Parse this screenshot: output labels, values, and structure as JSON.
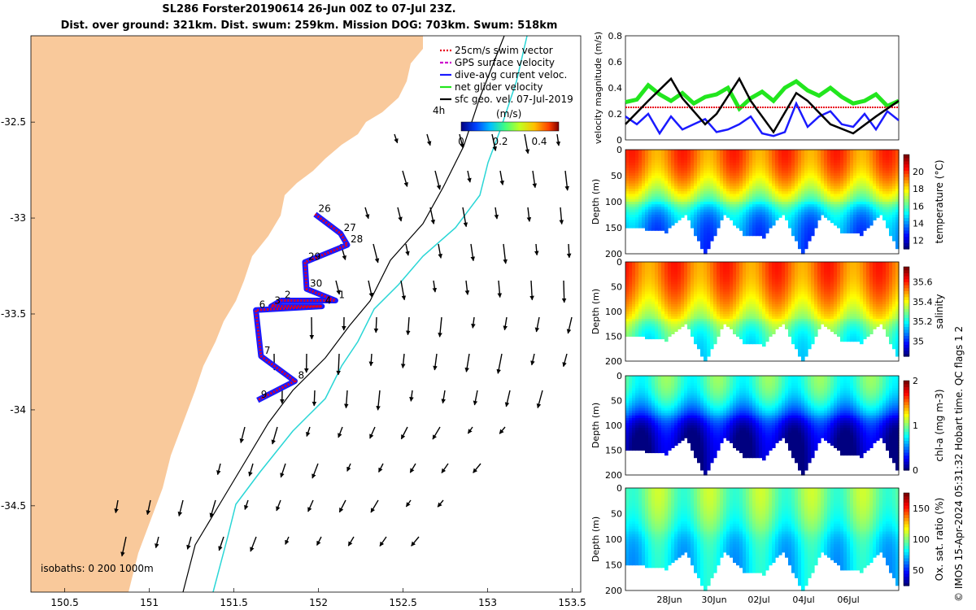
{
  "header": {
    "title_line1": "SL286 Forster20190614 26-Jun 00Z to 07-Jul 23Z.",
    "title_line2": "Dist. over ground: 321km. Dist. swum: 259km. Mission DOG: 703km. Swum: 518km"
  },
  "credit": "© IMOS 15-Apr-2024 05:31:32 Hobart time. QC flags 1  2",
  "colors": {
    "land": "#f9c99b",
    "trajectory": "#e8001c",
    "dive_avg": "#1a1aff",
    "net_velocity": "#22e61e",
    "geo_vel": "#000000",
    "isobath_200": "#000000",
    "isobath_1000": "#2ad6d6"
  },
  "map": {
    "x_ticks": [
      "150.5",
      "151",
      "151.5",
      "152",
      "152.5",
      "153",
      "153.5"
    ],
    "y_ticks": [
      "-32.5",
      "-33",
      "-33.5",
      "-34",
      "-34.5"
    ],
    "xlim": [
      150.3,
      153.55
    ],
    "ylim": [
      -34.95,
      -32.05
    ],
    "isobath_label": "isobaths: 0   200   1000m",
    "time_label": "4h",
    "legend": [
      {
        "label": "25cm/s swim vector",
        "color": "#e8001c",
        "style": "dotted"
      },
      {
        "label": "GPS surface velocity",
        "color": "#cc00cc",
        "style": "dashed"
      },
      {
        "label": "dive-avg current veloc.",
        "color": "#1a1aff",
        "style": "solid"
      },
      {
        "label": "net glider velocity",
        "color": "#22e61e",
        "style": "solid"
      },
      {
        "label": "sfc geo. vel. 07-Jul-2019",
        "color": "#000000",
        "style": "solid"
      }
    ],
    "colorbar": {
      "label": "(m/s)",
      "ticks": [
        "0",
        "0.2",
        "0.4"
      ],
      "range": [
        0,
        0.5
      ]
    },
    "day_labels": [
      {
        "text": "26",
        "lon": 151.98,
        "lat": -32.98
      },
      {
        "text": "27",
        "lon": 152.13,
        "lat": -33.08
      },
      {
        "text": "28",
        "lon": 152.17,
        "lat": -33.14
      },
      {
        "text": "29",
        "lon": 151.92,
        "lat": -33.23
      },
      {
        "text": "30",
        "lon": 151.93,
        "lat": -33.37
      },
      {
        "text": "1",
        "lon": 152.1,
        "lat": -33.43
      },
      {
        "text": "2",
        "lon": 151.78,
        "lat": -33.43
      },
      {
        "text": "3",
        "lon": 151.72,
        "lat": -33.46
      },
      {
        "text": "4",
        "lon": 152.02,
        "lat": -33.46
      },
      {
        "text": "6",
        "lon": 151.63,
        "lat": -33.48
      },
      {
        "text": "7",
        "lon": 151.66,
        "lat": -33.72
      },
      {
        "text": "8",
        "lon": 151.86,
        "lat": -33.85
      },
      {
        "text": "9",
        "lon": 151.64,
        "lat": -33.95
      }
    ]
  },
  "chart_data": [
    {
      "type": "line",
      "ylabel": "velocity magnitude (m/s)",
      "ylim": [
        0,
        0.8
      ],
      "y_ticks": [
        "0",
        "0.2",
        "0.4",
        "0.6",
        "0.8"
      ],
      "xlim": [
        "26Jun",
        "08Jul"
      ],
      "series": [
        {
          "name": "net glider velocity",
          "color": "#22e61e",
          "x": [
            0,
            0.5,
            1,
            1.5,
            2,
            2.5,
            3,
            3.5,
            4,
            4.5,
            5,
            5.5,
            6,
            6.5,
            7,
            7.5,
            8,
            8.5,
            9,
            9.5,
            10,
            10.5,
            11,
            11.5,
            12
          ],
          "values": [
            0.29,
            0.31,
            0.42,
            0.35,
            0.3,
            0.36,
            0.28,
            0.33,
            0.35,
            0.4,
            0.24,
            0.32,
            0.37,
            0.3,
            0.4,
            0.45,
            0.38,
            0.34,
            0.4,
            0.33,
            0.28,
            0.3,
            0.35,
            0.26,
            0.3
          ]
        },
        {
          "name": "25cm/s swim vector",
          "color": "#e8001c",
          "x": [
            0,
            12
          ],
          "values": [
            0.25,
            0.25
          ]
        },
        {
          "name": "dive-avg current veloc.",
          "color": "#1a1aff",
          "x": [
            0,
            0.5,
            1,
            1.5,
            2,
            2.5,
            3,
            3.5,
            4,
            4.5,
            5,
            5.5,
            6,
            6.5,
            7,
            7.5,
            8,
            8.5,
            9,
            9.5,
            10,
            10.5,
            11,
            11.5,
            12
          ],
          "values": [
            0.18,
            0.12,
            0.2,
            0.05,
            0.18,
            0.08,
            0.12,
            0.16,
            0.06,
            0.08,
            0.12,
            0.18,
            0.05,
            0.03,
            0.06,
            0.28,
            0.1,
            0.18,
            0.22,
            0.12,
            0.1,
            0.2,
            0.08,
            0.22,
            0.15
          ]
        },
        {
          "name": "sfc geo. vel.",
          "color": "#000000",
          "x": [
            0,
            1,
            2,
            2.5,
            3.5,
            4,
            5,
            5.5,
            6.5,
            7.5,
            8,
            9,
            10,
            11,
            12
          ],
          "values": [
            0.12,
            0.3,
            0.47,
            0.32,
            0.12,
            0.2,
            0.47,
            0.3,
            0.06,
            0.36,
            0.3,
            0.12,
            0.05,
            0.18,
            0.3
          ]
        }
      ]
    },
    {
      "type": "heatmap",
      "ylabel": "Depth (m)",
      "clabel": "temperature (°C)",
      "y_ticks": [
        "0",
        "50",
        "100",
        "150",
        "200"
      ],
      "c_ticks": [
        "12",
        "14",
        "16",
        "18",
        "20"
      ],
      "crange": [
        11,
        22
      ],
      "x_ticks": [
        "28Jun",
        "30Jun",
        "02Jul",
        "04Jul",
        "06Jul"
      ],
      "max_depth": [
        145,
        150,
        155,
        120,
        200,
        120,
        160,
        165,
        120,
        200,
        120,
        155,
        160,
        120,
        200
      ],
      "surface_value": 19.5,
      "thermocline_depth": 95,
      "deep_value": 13.5
    },
    {
      "type": "heatmap",
      "ylabel": "Depth (m)",
      "clabel": "salinity",
      "y_ticks": [
        "0",
        "50",
        "100",
        "150",
        "200"
      ],
      "c_ticks": [
        "35",
        "35.2",
        "35.4",
        "35.6"
      ],
      "crange": [
        34.85,
        35.75
      ],
      "max_depth": [
        145,
        150,
        155,
        120,
        200,
        120,
        160,
        165,
        120,
        200,
        120,
        155,
        160,
        120,
        200
      ],
      "surface_value": 35.55,
      "thermocline_depth": 110,
      "deep_value": 35.2
    },
    {
      "type": "heatmap",
      "ylabel": "Depth (m)",
      "clabel": "chl-a (mg m-3)",
      "y_ticks": [
        "0",
        "50",
        "100",
        "150",
        "200"
      ],
      "c_ticks": [
        "0",
        "1",
        "2"
      ],
      "crange": [
        0,
        2
      ],
      "max_depth": [
        145,
        150,
        155,
        120,
        200,
        120,
        160,
        165,
        120,
        200,
        120,
        155,
        160,
        120,
        200
      ],
      "surface_value": 0.9,
      "thermocline_depth": 75,
      "deep_value": 0.05
    },
    {
      "type": "heatmap",
      "ylabel": "Depth (m)",
      "clabel": "Ox. sat. ratio (%)",
      "y_ticks": [
        "0",
        "50",
        "100",
        "150",
        "200"
      ],
      "c_ticks": [
        "50",
        "100",
        "150"
      ],
      "crange": [
        25,
        175
      ],
      "max_depth": [
        145,
        150,
        155,
        120,
        200,
        120,
        160,
        165,
        120,
        200,
        120,
        155,
        160,
        120,
        200
      ],
      "surface_value": 100,
      "thermocline_depth": 80,
      "deep_value": 75
    }
  ]
}
